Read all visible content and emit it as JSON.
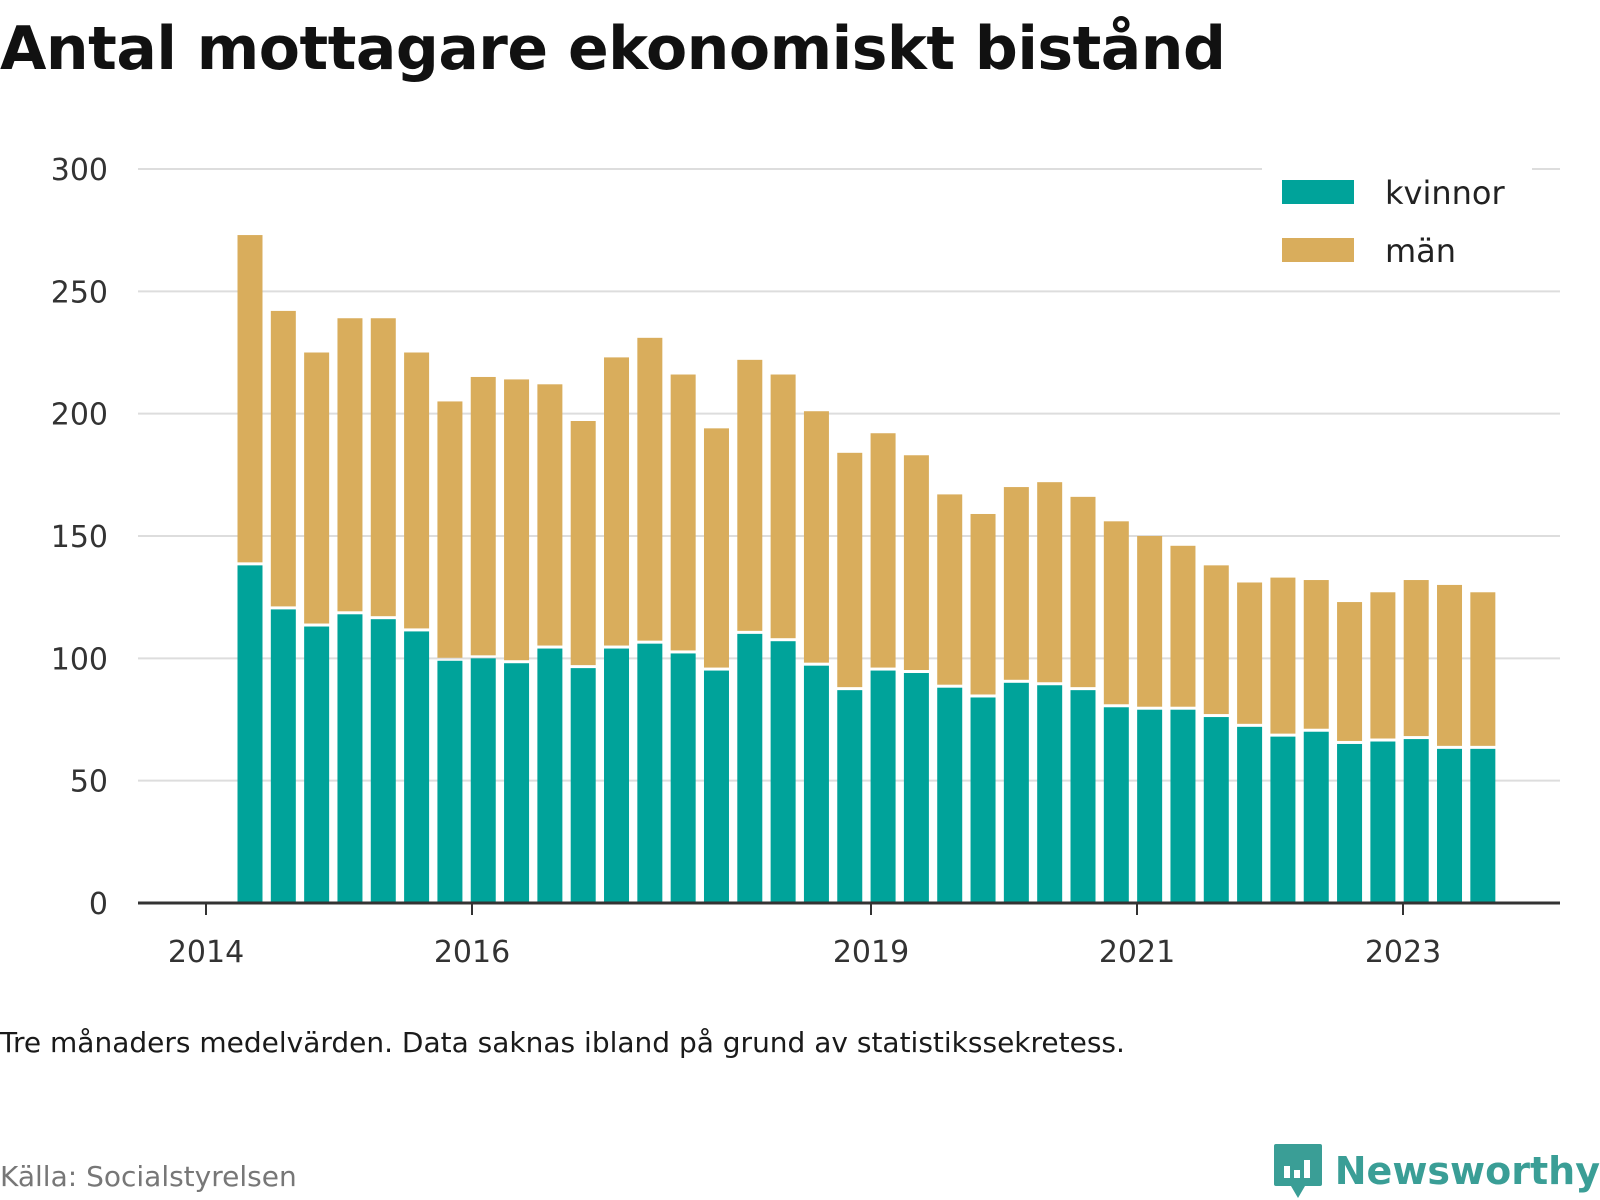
{
  "chart_data": {
    "type": "bar",
    "stacked": true,
    "title": "Antal mottagare ekonomiskt bistånd",
    "note": "Tre månaders medelvärden. Data saknas ibland på grund av statistikssekretess.",
    "source": "Källa: Socialstyrelsen",
    "ylim": [
      0,
      300
    ],
    "yticks": [
      0,
      50,
      100,
      150,
      200,
      250,
      300
    ],
    "xticks": [
      "2014",
      "2016",
      "2019",
      "2021",
      "2023"
    ],
    "grid": true,
    "legend_position": "top-right",
    "colors": {
      "kvinnor": "#00a39a",
      "män": "#d9ad5c"
    },
    "series": [
      {
        "name": "kvinnor",
        "values": [
          138,
          120,
          113,
          118,
          116,
          111,
          99,
          100,
          98,
          104,
          96,
          104,
          106,
          102,
          95,
          110,
          107,
          97,
          87,
          95,
          94,
          88,
          84,
          90,
          89,
          87,
          80,
          79,
          79,
          76,
          72,
          68,
          70,
          65,
          66,
          67,
          63,
          63
        ]
      },
      {
        "name": "män",
        "values": [
          135,
          122,
          112,
          121,
          123,
          114,
          106,
          115,
          116,
          108,
          101,
          119,
          125,
          114,
          99,
          112,
          109,
          104,
          97,
          97,
          89,
          79,
          75,
          80,
          83,
          79,
          76,
          71,
          67,
          62,
          59,
          65,
          62,
          58,
          61,
          65,
          67,
          64
        ]
      }
    ]
  },
  "brand": {
    "name": "Newsworthy",
    "color": "#3a9e96",
    "icon": "newsworthy-logo-icon"
  }
}
